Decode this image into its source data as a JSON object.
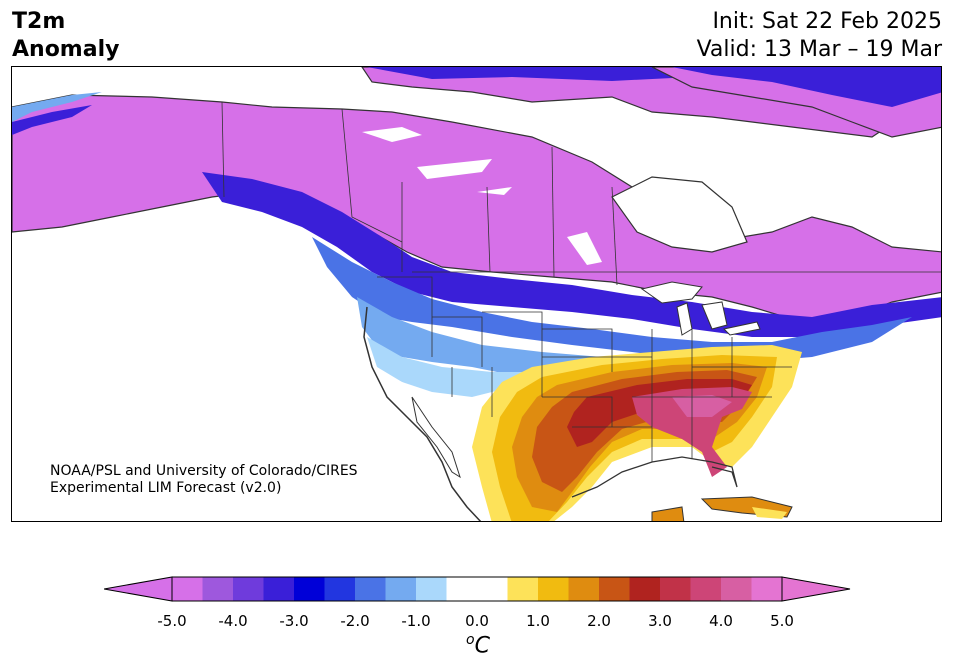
{
  "header": {
    "title_line1": "T2m",
    "title_line2": "Anomaly",
    "init": "Init: Sat 22 Feb 2025",
    "valid": "Valid: 13 Mar – 19 Mar"
  },
  "credit": {
    "line1": "NOAA/PSL and University of Colorado/CIRES",
    "line2": "Experimental LIM Forecast (v2.0)"
  },
  "colorbar": {
    "unit_base": "C",
    "unit_sup": "o",
    "tick_labels": [
      "-5.0",
      "-4.0",
      "-3.0",
      "-2.0",
      "-1.0",
      "0.0",
      "1.0",
      "2.0",
      "3.0",
      "4.0",
      "5.0"
    ],
    "colors": [
      "#d670e8",
      "#9e58dd",
      "#6f3bdc",
      "#3a1fd8",
      "#0000d8",
      "#2236e0",
      "#4a73e6",
      "#74aaf0",
      "#aad8fb",
      "#ffffff",
      "#ffffff",
      "#fde259",
      "#f1bb10",
      "#df8c10",
      "#c85515",
      "#b0231f",
      "#c13248",
      "#cd4577",
      "#d75fa3",
      "#e474d2"
    ],
    "left_extend_color": "#d670e8",
    "right_extend_color": "#e474d2"
  },
  "map": {
    "region": "North America",
    "colors": {
      "land_neutral": "#ffffff",
      "cold_extreme": "#d670e8",
      "cold_strong": "#3a1fd8",
      "cold_moderate": "#4a73e6",
      "cold_weak": "#aad8fb",
      "warm_weak": "#fde259",
      "warm_moderate": "#df8c10",
      "warm_strong": "#b0231f",
      "warm_extreme": "#cd4577",
      "borders": "#333333"
    }
  }
}
